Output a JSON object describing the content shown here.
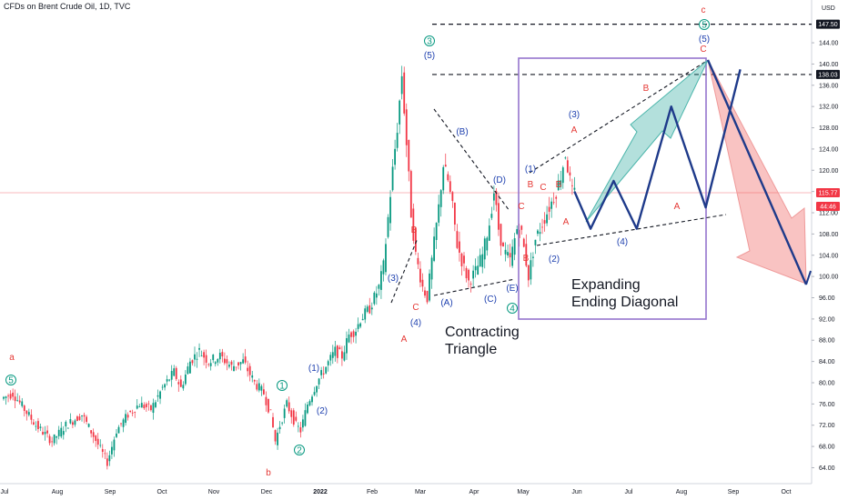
{
  "chart_data": {
    "type": "candlestick",
    "title": "CFDs on Brent Crude Oil, 1D, TVC",
    "currency": "USD",
    "y_axis": {
      "min": 61,
      "max": 150,
      "position": "right",
      "ticks": [
        64,
        68,
        72,
        76,
        80,
        84,
        88,
        92,
        96,
        100,
        104,
        108,
        112,
        116,
        120,
        124,
        128,
        132,
        136,
        140,
        144
      ],
      "special_labels": [
        {
          "value": 147.5,
          "text": "147.50",
          "style": "dark"
        },
        {
          "value": 138.03,
          "text": "138.03",
          "style": "dark"
        },
        {
          "value": 115.77,
          "text": "115.77",
          "style": "red"
        },
        {
          "value": 113.2,
          "text": "44:46",
          "style": "red"
        }
      ]
    },
    "x_axis": {
      "labels": [
        "Jul",
        "Aug",
        "Sep",
        "Oct",
        "Nov",
        "Dec",
        "2022",
        "Feb",
        "Mar",
        "Apr",
        "May",
        "Jun",
        "Jul",
        "Aug",
        "Sep",
        "Oct"
      ]
    },
    "current_price": 115.77,
    "levels": [
      {
        "value": 147.5,
        "style": "dashed"
      },
      {
        "value": 138.03,
        "style": "dashed"
      }
    ],
    "price_path": [
      [
        0,
        77
      ],
      [
        5,
        78
      ],
      [
        10,
        75
      ],
      [
        15,
        72
      ],
      [
        22,
        69
      ],
      [
        28,
        72
      ],
      [
        35,
        74
      ],
      [
        40,
        70
      ],
      [
        46,
        65
      ],
      [
        50,
        71
      ],
      [
        55,
        74
      ],
      [
        60,
        76
      ],
      [
        65,
        75
      ],
      [
        70,
        79
      ],
      [
        75,
        82
      ],
      [
        78,
        79
      ],
      [
        82,
        84
      ],
      [
        86,
        86
      ],
      [
        90,
        84
      ],
      [
        95,
        85
      ],
      [
        100,
        83
      ],
      [
        105,
        84
      ],
      [
        110,
        80
      ],
      [
        114,
        78
      ],
      [
        117,
        74
      ],
      [
        119,
        69
      ],
      [
        121,
        72
      ],
      [
        124,
        76
      ],
      [
        128,
        72
      ],
      [
        130,
        71
      ],
      [
        133,
        76
      ],
      [
        137,
        80
      ],
      [
        141,
        83
      ],
      [
        145,
        86
      ],
      [
        148,
        85
      ],
      [
        151,
        89
      ],
      [
        154,
        90
      ],
      [
        156,
        92
      ],
      [
        160,
        94
      ],
      [
        164,
        98
      ],
      [
        166,
        102
      ],
      [
        168,
        111
      ],
      [
        170,
        120
      ],
      [
        172,
        128
      ],
      [
        174,
        138
      ],
      [
        176,
        125
      ],
      [
        178,
        112
      ],
      [
        180,
        104
      ],
      [
        183,
        98
      ],
      [
        185,
        96
      ],
      [
        187,
        103
      ],
      [
        190,
        113
      ],
      [
        192,
        121
      ],
      [
        194,
        118
      ],
      [
        196,
        113
      ],
      [
        198,
        106
      ],
      [
        200,
        103
      ],
      [
        203,
        99
      ],
      [
        206,
        101
      ],
      [
        209,
        104
      ],
      [
        212,
        110
      ],
      [
        214,
        116
      ],
      [
        216,
        109
      ],
      [
        218,
        105
      ],
      [
        221,
        103
      ],
      [
        224,
        109
      ],
      [
        226,
        108
      ],
      [
        229,
        100
      ],
      [
        232,
        107
      ],
      [
        235,
        110
      ],
      [
        238,
        113
      ],
      [
        241,
        116
      ],
      [
        243,
        119
      ],
      [
        245,
        123
      ],
      [
        247,
        118
      ],
      [
        248,
        115.77
      ]
    ],
    "projection": {
      "zigzag": [
        [
          248,
          116
        ],
        [
          255,
          109
        ],
        [
          265,
          118
        ],
        [
          275,
          109
        ],
        [
          290,
          132
        ],
        [
          305,
          113
        ],
        [
          320,
          139
        ]
      ],
      "final_decline": [
        [
          320,
          139
        ],
        [
          360,
          98
        ]
      ]
    },
    "wave_labels": {
      "green": [
        "5",
        "1",
        "2",
        "3",
        "4",
        "5"
      ],
      "red": [
        "a",
        "b",
        "c",
        "C",
        "B",
        "A",
        "C",
        "A",
        "B",
        "C",
        "B",
        "A",
        "C",
        "B",
        "A",
        "B"
      ],
      "blue": [
        "(1)",
        "(2)",
        "(3)",
        "(4)",
        "(5)",
        "(A)",
        "(B)",
        "(C)",
        "(D)",
        "(E)",
        "(1)",
        "(2)",
        "(3)",
        "(4)",
        "(5)"
      ]
    },
    "annotations": [
      "Contracting Triangle",
      "Expanding Ending Diagonal"
    ]
  }
}
